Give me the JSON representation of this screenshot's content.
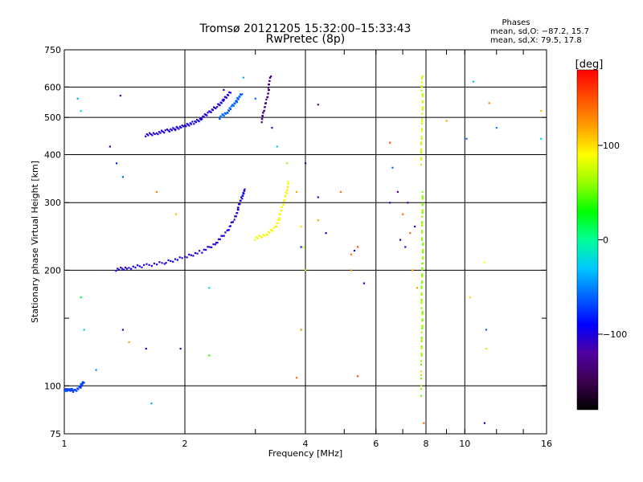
{
  "chart_data": {
    "type": "scatter",
    "title": "Tromsø 20121205 15:32:00–15:33:43",
    "subtitle": "RwPretec (8p)",
    "xlabel": "Frequency [MHz]",
    "ylabel": "Stationary phase Virtual Height [km]",
    "x_scale": "log",
    "y_scale": "log",
    "xlim": [
      1,
      16
    ],
    "ylim": [
      75,
      750
    ],
    "x_ticks": [
      {
        "value": 1,
        "label": "1"
      },
      {
        "value": 2,
        "label": "2"
      },
      {
        "value": 4,
        "label": "4"
      },
      {
        "value": 6,
        "label": "6"
      },
      {
        "value": 8,
        "label": "8"
      },
      {
        "value": 10,
        "label": "10"
      },
      {
        "value": 16,
        "label": "16"
      }
    ],
    "x_minor_ticks": [
      3,
      5,
      7,
      9,
      12,
      14
    ],
    "y_ticks": [
      {
        "value": 75,
        "label": "75"
      },
      {
        "value": 100,
        "label": "100"
      },
      {
        "value": 200,
        "label": "200"
      },
      {
        "value": 300,
        "label": "300"
      },
      {
        "value": 400,
        "label": "400"
      },
      {
        "value": 500,
        "label": "500"
      },
      {
        "value": 600,
        "label": "600"
      },
      {
        "value": 750,
        "label": "750"
      }
    ],
    "y_minor_ticks": [
      150
    ],
    "x_gridlines": [
      2,
      4,
      6,
      8,
      10
    ],
    "y_gridlines": [
      100,
      200,
      300,
      400,
      500,
      600
    ],
    "stats": {
      "heading": "Phases",
      "line_o": "mean, sd,O: −87.2, 15.7",
      "line_x": "mean, sd,X:  79.5, 17.8"
    },
    "colorbar": {
      "label": "[deg]",
      "range": [
        -180,
        180
      ],
      "ticks": [
        {
          "value": 100,
          "label": "100"
        },
        {
          "value": 0,
          "label": "0"
        },
        {
          "value": -100,
          "label": "−100"
        }
      ],
      "stops": [
        "#000000",
        "#3c0050",
        "#5000a0",
        "#0000ff",
        "#0064ff",
        "#00c8ff",
        "#00ff96",
        "#00ff00",
        "#96ff00",
        "#ffff00",
        "#ffa000",
        "#ff5000",
        "#ff0000"
      ]
    },
    "series": [
      {
        "kind": "trace",
        "phase": -100,
        "points": [
          [
            1.35,
            201
          ],
          [
            1.45,
            203
          ],
          [
            1.6,
            206
          ],
          [
            1.8,
            210
          ],
          [
            2.0,
            216
          ],
          [
            2.2,
            224
          ],
          [
            2.4,
            236
          ],
          [
            2.55,
            252
          ],
          [
            2.65,
            272
          ],
          [
            2.72,
            290
          ],
          [
            2.78,
            310
          ],
          [
            2.82,
            325
          ]
        ]
      },
      {
        "kind": "trace",
        "phase": -100,
        "points": [
          [
            1.6,
            450
          ],
          [
            1.7,
            455
          ],
          [
            1.8,
            462
          ],
          [
            1.9,
            468
          ],
          [
            2.0,
            475
          ],
          [
            2.1,
            485
          ],
          [
            2.2,
            497
          ],
          [
            2.3,
            515
          ],
          [
            2.4,
            535
          ],
          [
            2.5,
            555
          ],
          [
            2.6,
            580
          ]
        ]
      },
      {
        "kind": "trace",
        "phase": -60,
        "points": [
          [
            2.45,
            500
          ],
          [
            2.55,
            515
          ],
          [
            2.62,
            535
          ],
          [
            2.7,
            555
          ],
          [
            2.78,
            575
          ]
        ]
      },
      {
        "kind": "trace",
        "phase": -130,
        "points": [
          [
            3.12,
            490
          ],
          [
            3.15,
            520
          ],
          [
            3.2,
            560
          ],
          [
            3.24,
            600
          ],
          [
            3.28,
            640
          ]
        ]
      },
      {
        "kind": "trace",
        "phase": 90,
        "points": [
          [
            3.0,
            242
          ],
          [
            3.2,
            248
          ],
          [
            3.35,
            258
          ],
          [
            3.45,
            275
          ],
          [
            3.52,
            295
          ],
          [
            3.58,
            320
          ],
          [
            3.62,
            340
          ]
        ]
      },
      {
        "kind": "trace",
        "phase": 75,
        "points": [
          [
            7.8,
            380
          ],
          [
            7.8,
            440
          ],
          [
            7.82,
            520
          ],
          [
            7.82,
            590
          ],
          [
            7.84,
            640
          ]
        ]
      },
      {
        "kind": "trace",
        "phase": 60,
        "points": [
          [
            7.8,
            95
          ],
          [
            7.8,
            120
          ],
          [
            7.8,
            140
          ],
          [
            7.82,
            160
          ],
          [
            7.82,
            185
          ],
          [
            7.82,
            210
          ],
          [
            7.84,
            240
          ],
          [
            7.84,
            280
          ],
          [
            7.84,
            320
          ]
        ]
      },
      {
        "kind": "trace",
        "phase": -70,
        "points": [
          [
            1.0,
            97
          ],
          [
            1.03,
            98
          ],
          [
            1.06,
            97
          ],
          [
            1.1,
            100
          ],
          [
            1.12,
            102
          ]
        ]
      },
      {
        "kind": "scatter",
        "points": [
          [
            1.08,
            560,
            -40
          ],
          [
            1.1,
            520,
            -20
          ],
          [
            1.1,
            170,
            20
          ],
          [
            1.12,
            140,
            -30
          ],
          [
            1.2,
            110,
            -50
          ],
          [
            1.3,
            420,
            -100
          ],
          [
            1.35,
            380,
            -80
          ],
          [
            1.4,
            350,
            -60
          ],
          [
            1.38,
            570,
            -120
          ],
          [
            1.4,
            140,
            -100
          ],
          [
            1.45,
            130,
            120
          ],
          [
            1.6,
            125,
            -100
          ],
          [
            1.65,
            90,
            -40
          ],
          [
            1.7,
            320,
            130
          ],
          [
            1.9,
            280,
            110
          ],
          [
            1.95,
            125,
            -110
          ],
          [
            2.3,
            120,
            40
          ],
          [
            2.3,
            180,
            -20
          ],
          [
            2.5,
            590,
            -100
          ],
          [
            2.8,
            635,
            -40
          ],
          [
            3.0,
            560,
            -60
          ],
          [
            3.3,
            470,
            -110
          ],
          [
            3.4,
            420,
            -30
          ],
          [
            3.6,
            380,
            60
          ],
          [
            3.8,
            320,
            120
          ],
          [
            3.9,
            260,
            100
          ],
          [
            3.95,
            230,
            80
          ],
          [
            4.0,
            200,
            60
          ],
          [
            4.0,
            380,
            -110
          ],
          [
            3.9,
            230,
            -80
          ],
          [
            4.3,
            540,
            -120
          ],
          [
            4.3,
            310,
            -110
          ],
          [
            4.3,
            270,
            120
          ],
          [
            4.5,
            250,
            -90
          ],
          [
            4.9,
            320,
            140
          ],
          [
            5.2,
            200,
            130
          ],
          [
            5.2,
            220,
            140
          ],
          [
            5.3,
            225,
            -100
          ],
          [
            5.4,
            230,
            150
          ],
          [
            5.6,
            185,
            -100
          ],
          [
            5.4,
            106,
            150
          ],
          [
            3.9,
            140,
            130
          ],
          [
            3.8,
            105,
            140
          ],
          [
            6.5,
            300,
            -110
          ],
          [
            6.6,
            370,
            -60
          ],
          [
            6.8,
            320,
            -120
          ],
          [
            7.0,
            280,
            140
          ],
          [
            6.9,
            240,
            -110
          ],
          [
            7.1,
            230,
            -90
          ],
          [
            7.2,
            300,
            -120
          ],
          [
            7.3,
            250,
            140
          ],
          [
            7.4,
            200,
            120
          ],
          [
            7.5,
            260,
            -100
          ],
          [
            7.6,
            180,
            120
          ],
          [
            7.9,
            80,
            140
          ],
          [
            10.5,
            620,
            -30
          ],
          [
            11.5,
            545,
            130
          ],
          [
            11.2,
            210,
            90
          ],
          [
            11.3,
            140,
            -60
          ],
          [
            11.3,
            125,
            70
          ],
          [
            11.2,
            80,
            -110
          ],
          [
            12.0,
            470,
            -50
          ],
          [
            15.5,
            440,
            -20
          ],
          [
            15.5,
            520,
            110
          ],
          [
            10.3,
            170,
            100
          ],
          [
            10.1,
            440,
            -60
          ],
          [
            9.0,
            490,
            120
          ],
          [
            6.5,
            430,
            150
          ]
        ]
      }
    ]
  }
}
